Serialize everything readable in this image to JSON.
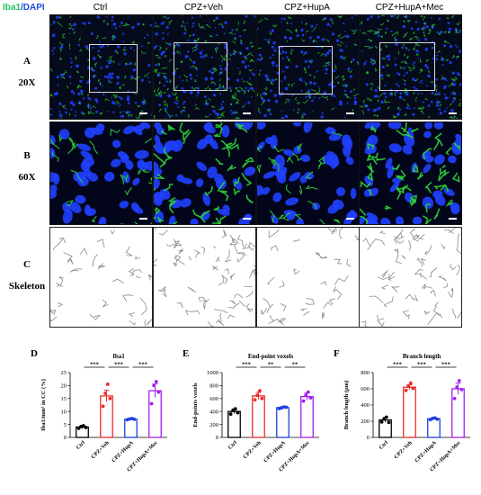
{
  "header": {
    "stain_marker": "Iba1",
    "stain_separator": "/",
    "stain_nucleus": "DAPI",
    "stain_marker_color": "#22c55e",
    "stain_nucleus_color": "#1d4ed8",
    "groups": [
      "Ctrl",
      "CPZ+Veh",
      "CPZ+HupA",
      "CPZ+HupA+Mec"
    ]
  },
  "rows": [
    {
      "letter": "A",
      "label": "20X"
    },
    {
      "letter": "B",
      "label": "60X"
    },
    {
      "letter": "C",
      "label": "Skeleton"
    }
  ],
  "colors": {
    "ctrl": "#000000",
    "cpz_veh": "#ef2b2b",
    "cpz_hupa": "#1f3fe0",
    "cpz_hupa_mec": "#a020f0",
    "microglia": "#2fd13a",
    "nuclei": "#2040ff"
  },
  "chart_data": [
    {
      "letter": "D",
      "type": "bar",
      "title": "Iba1",
      "ylabel": "Iba1/mm² in CC (%)",
      "categories": [
        "Ctrl",
        "CPZ+Veh",
        "CPZ+HupA",
        "CPZ+HupA+Mec"
      ],
      "values": [
        4,
        16,
        7,
        18
      ],
      "errors": [
        0.6,
        2.2,
        0.4,
        2.6
      ],
      "points": [
        [
          3.5,
          4.2,
          4.5,
          3.8
        ],
        [
          12,
          17,
          20.5,
          15
        ],
        [
          6.8,
          7.1,
          7.3,
          7
        ],
        [
          13,
          20,
          21.5,
          17.5
        ]
      ],
      "ylim": [
        0,
        25
      ],
      "yticks": [
        0,
        5,
        10,
        15,
        20,
        25
      ],
      "significance": [
        {
          "from": 0,
          "to": 1,
          "label": "***"
        },
        {
          "from": 1,
          "to": 2,
          "label": "***"
        },
        {
          "from": 2,
          "to": 3,
          "label": "***"
        }
      ]
    },
    {
      "letter": "E",
      "type": "bar",
      "title": "End-point voxels",
      "ylabel": "End-points voxels",
      "categories": [
        "Ctrl",
        "CPZ+Veh",
        "CPZ+HupA",
        "CPZ+HupA+Mec"
      ],
      "values": [
        400,
        640,
        460,
        630
      ],
      "errors": [
        30,
        55,
        15,
        55
      ],
      "points": [
        [
          360,
          420,
          440,
          380
        ],
        [
          580,
          650,
          720,
          600
        ],
        [
          445,
          455,
          470,
          465
        ],
        [
          560,
          650,
          700,
          610
        ]
      ],
      "ylim": [
        0,
        1000
      ],
      "yticks": [
        0,
        200,
        400,
        600,
        800,
        1000
      ],
      "significance": [
        {
          "from": 0,
          "to": 1,
          "label": "***"
        },
        {
          "from": 1,
          "to": 2,
          "label": "**"
        },
        {
          "from": 2,
          "to": 3,
          "label": "**"
        }
      ]
    },
    {
      "letter": "F",
      "type": "bar",
      "title": "Branch length",
      "ylabel": "Branch length (μm)",
      "categories": [
        "Ctrl",
        "CPZ+Veh",
        "CPZ+HupA",
        "CPZ+HupA+Mec"
      ],
      "values": [
        215,
        620,
        230,
        600
      ],
      "errors": [
        25,
        30,
        12,
        70
      ],
      "points": [
        [
          190,
          230,
          250,
          185
        ],
        [
          580,
          630,
          670,
          605
        ],
        [
          220,
          235,
          240,
          225
        ],
        [
          480,
          620,
          700,
          590
        ]
      ],
      "ylim": [
        0,
        800
      ],
      "yticks": [
        0,
        200,
        400,
        600,
        800
      ],
      "significance": [
        {
          "from": 0,
          "to": 1,
          "label": "***"
        },
        {
          "from": 1,
          "to": 2,
          "label": "***"
        },
        {
          "from": 2,
          "to": 3,
          "label": "***"
        }
      ]
    }
  ]
}
